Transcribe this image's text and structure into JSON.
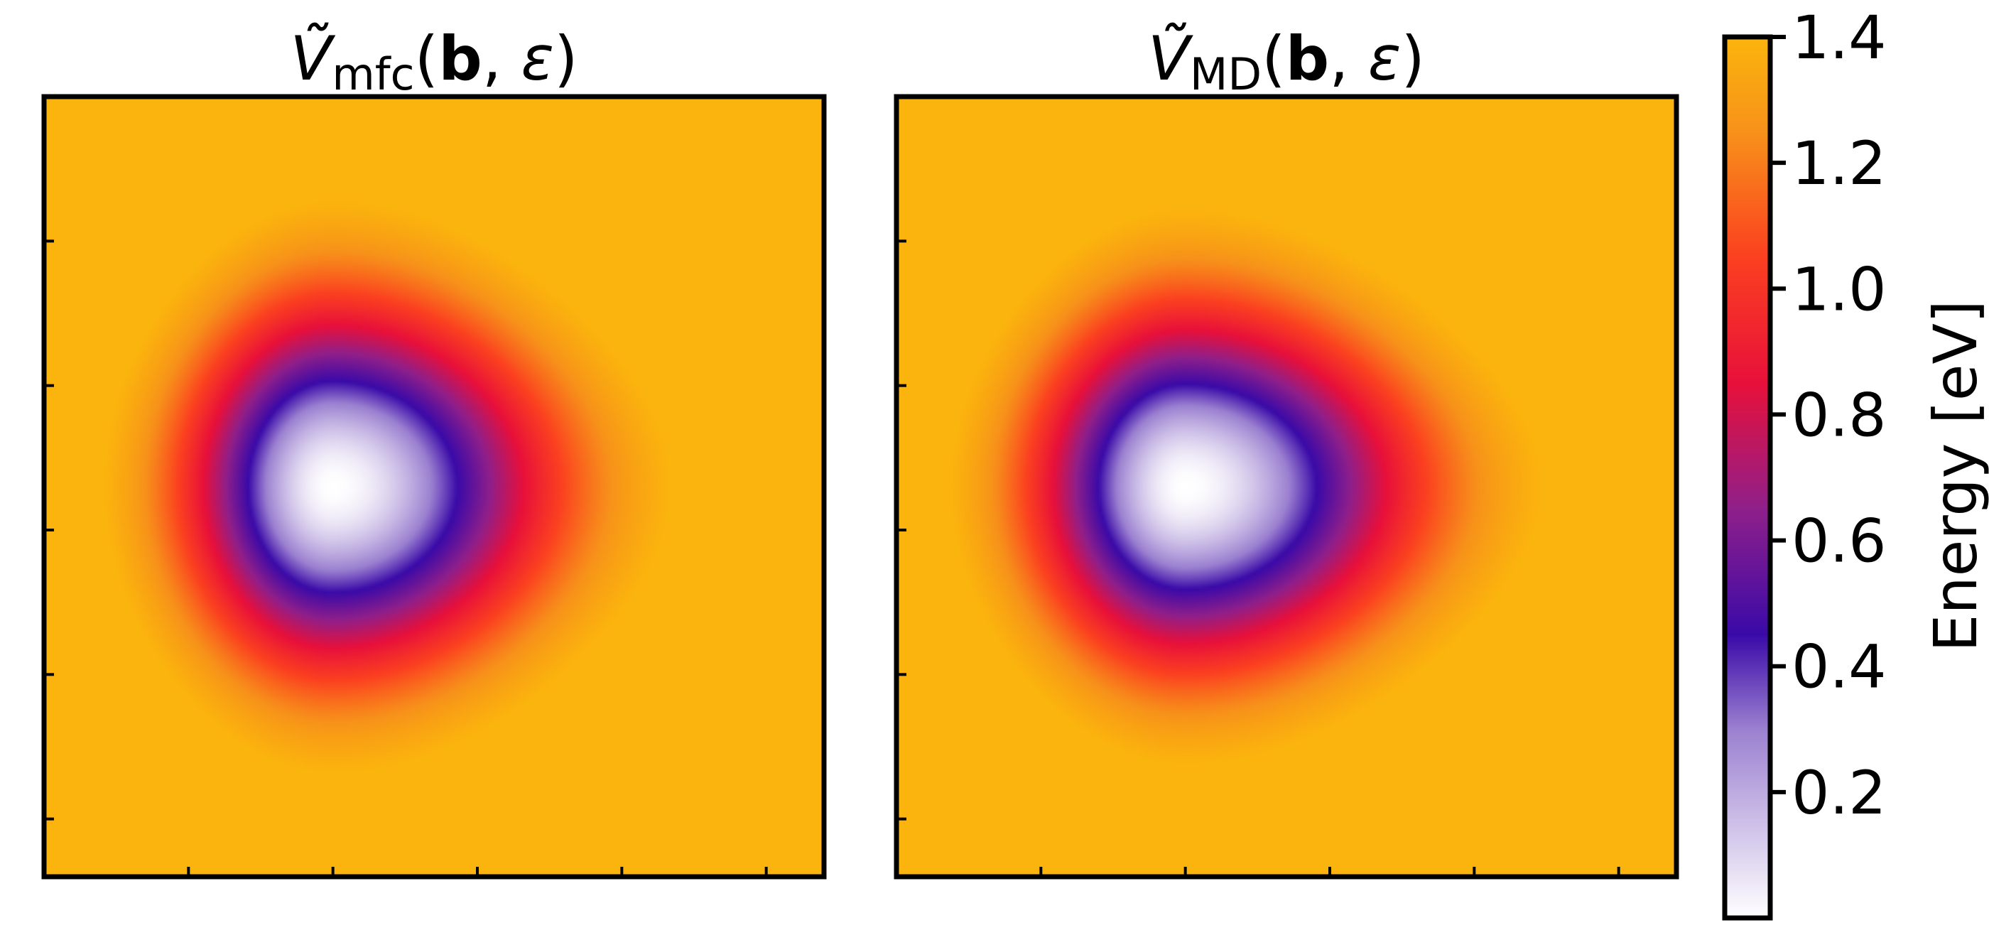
{
  "chart_data": [
    {
      "type": "heatmap",
      "title_math": {
        "symbol": "V",
        "tilde": true,
        "subscript": "mfc",
        "args": [
          "b",
          "ε"
        ]
      },
      "min_location": [
        0.37,
        0.5
      ],
      "scale": [
        1.0,
        1.0
      ],
      "asymmetry": 0.28,
      "ticks": "inward, no labels",
      "colormap_range": [
        0.0,
        1.4
      ]
    },
    {
      "type": "heatmap",
      "title_math": {
        "symbol": "V",
        "tilde": true,
        "subscript": "MD",
        "args": [
          "b",
          "ε"
        ]
      },
      "min_location": [
        0.37,
        0.5
      ],
      "scale": [
        1.04,
        0.97
      ],
      "asymmetry": 0.3,
      "ticks": "inward, no labels",
      "colormap_range": [
        0.0,
        1.4
      ]
    }
  ],
  "colorbar": {
    "label": "Energy [eV]",
    "vmin": 0.0,
    "vmax": 1.4,
    "ticks": [
      0.2,
      0.4,
      0.6,
      0.8,
      1.0,
      1.2,
      1.4
    ],
    "tick_labels": [
      "0.2",
      "0.4",
      "0.6",
      "0.8",
      "1.0",
      "1.2",
      "1.4"
    ],
    "colormap_stops": [
      {
        "value": 0.0,
        "color": "#ffffff"
      },
      {
        "value": 0.3,
        "color": "#9b80d0"
      },
      {
        "value": 0.45,
        "color": "#3a0aa8"
      },
      {
        "value": 0.65,
        "color": "#8f1f8a"
      },
      {
        "value": 0.85,
        "color": "#e8103a"
      },
      {
        "value": 1.05,
        "color": "#fb4020"
      },
      {
        "value": 1.25,
        "color": "#f7921a"
      },
      {
        "value": 1.4,
        "color": "#fbb40d"
      }
    ]
  }
}
